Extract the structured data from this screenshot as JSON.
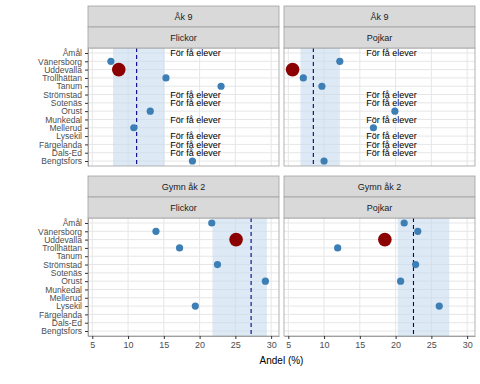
{
  "chart_data": {
    "type": "dot",
    "x_label": "Andel (%)",
    "xlim": [
      4.4,
      31.1
    ],
    "xticks": [
      5,
      10,
      15,
      20,
      25,
      30
    ],
    "grid": true,
    "color": "#3d7fb5",
    "categories": [
      "Åmål",
      "Vänersborg",
      "Uddevalla",
      "Trollhättan",
      "Tanum",
      "Strömstad",
      "Sotenäs",
      "Orust",
      "Munkedal",
      "Mellerud",
      "Lysekil",
      "Färgelanda",
      "Dals-Ed",
      "Bengtsfors"
    ],
    "facets": [
      {
        "title": "Åk 9",
        "subtitle": "Flickor",
        "values": [
          null,
          7.6,
          8.7,
          15.3,
          23.0,
          null,
          null,
          13.1,
          null,
          10.8,
          null,
          null,
          null,
          19.0
        ],
        "colors": [
          "#3d7fb5",
          "#3d7fb5",
          "#8b0000",
          "#3d7fb5",
          "#3d7fb5",
          "#3d7fb5",
          "#3d7fb5",
          "#3d7fb5",
          "#3d7fb5",
          "#3d7fb5",
          "#3d7fb5",
          "#3d7fb5",
          "#3d7fb5",
          "#3d7fb5"
        ],
        "band": [
          7.9,
          15.1
        ],
        "mean": 11.2,
        "annotations": [
          {
            "category": "Åmål",
            "text": "För få elever"
          },
          {
            "category": "Strömstad",
            "text": "För få elever"
          },
          {
            "category": "Sotenäs",
            "text": "För få elever"
          },
          {
            "category": "Munkedal",
            "text": "För få elever"
          },
          {
            "category": "Lysekil",
            "text": "För få elever"
          },
          {
            "category": "Färgelanda",
            "text": "För få elever"
          },
          {
            "category": "Dals-Ed",
            "text": "För få elever"
          }
        ]
      },
      {
        "title": "Åk 9",
        "subtitle": "Pojkar",
        "values": [
          null,
          12.2,
          5.6,
          7.1,
          9.7,
          null,
          null,
          19.9,
          null,
          16.9,
          null,
          null,
          null,
          10.0
        ],
        "colors": [
          "#3d7fb5",
          "#3d7fb5",
          "#8b0000",
          "#3d7fb5",
          "#3d7fb5",
          "#3d7fb5",
          "#3d7fb5",
          "#3d7fb5",
          "#3d7fb5",
          "#3d7fb5",
          "#3d7fb5",
          "#3d7fb5",
          "#3d7fb5",
          "#3d7fb5"
        ],
        "band": [
          6.7,
          12.2
        ],
        "mean": 8.5,
        "annotations": [
          {
            "category": "Åmål",
            "text": "För få elever"
          },
          {
            "category": "Strömstad",
            "text": "För få elever"
          },
          {
            "category": "Sotenäs",
            "text": "För få elever"
          },
          {
            "category": "Munkedal",
            "text": "För få elever"
          },
          {
            "category": "Lysekil",
            "text": "För få elever"
          },
          {
            "category": "Färgelanda",
            "text": "För få elever"
          },
          {
            "category": "Dals-Ed",
            "text": "För få elever"
          }
        ]
      },
      {
        "title": "Gymn åk 2",
        "subtitle": "Flickor",
        "values": [
          21.7,
          13.9,
          25.1,
          17.2,
          null,
          22.5,
          null,
          29.2,
          null,
          null,
          19.4,
          null,
          null,
          null
        ],
        "colors": [
          "#3d7fb5",
          "#3d7fb5",
          "#8b0000",
          "#3d7fb5",
          "#3d7fb5",
          "#3d7fb5",
          "#3d7fb5",
          "#3d7fb5",
          "#3d7fb5",
          "#3d7fb5",
          "#3d7fb5",
          "#3d7fb5",
          "#3d7fb5",
          "#3d7fb5"
        ],
        "band": [
          21.8,
          29.4
        ],
        "mean": 27.2,
        "annotations": []
      },
      {
        "title": "Gymn åk 2",
        "subtitle": "Pojkar",
        "values": [
          21.2,
          23.1,
          18.5,
          11.9,
          null,
          22.8,
          null,
          20.7,
          null,
          null,
          26.1,
          null,
          null,
          null
        ],
        "colors": [
          "#3d7fb5",
          "#3d7fb5",
          "#8b0000",
          "#3d7fb5",
          "#3d7fb5",
          "#3d7fb5",
          "#3d7fb5",
          "#3d7fb5",
          "#3d7fb5",
          "#3d7fb5",
          "#3d7fb5",
          "#3d7fb5",
          "#3d7fb5",
          "#3d7fb5"
        ],
        "band": [
          20.3,
          27.5
        ],
        "mean": 22.5,
        "annotations": []
      }
    ]
  }
}
